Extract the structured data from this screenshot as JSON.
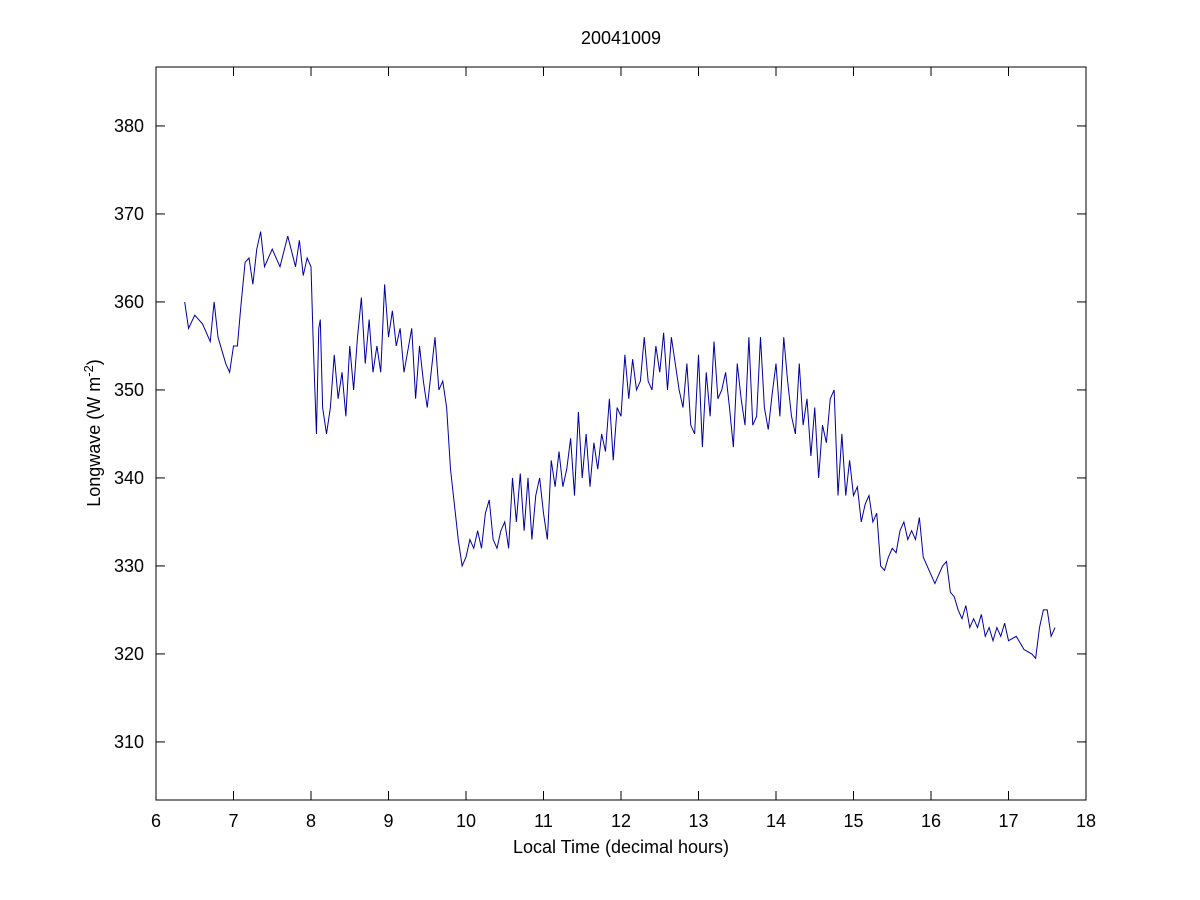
{
  "chart_data": {
    "type": "line",
    "title": "20041009",
    "xlabel": "Local Time (decimal hours)",
    "ylabel": [
      "Longwave (W m",
      "-2",
      ")"
    ],
    "color": "#0000a0",
    "xlim": [
      6,
      18
    ],
    "xticks": [
      6,
      7,
      8,
      9,
      10,
      11,
      12,
      13,
      14,
      15,
      16,
      17,
      18
    ],
    "ylim": [
      303.4,
      386.7
    ],
    "yticks": [
      310,
      320,
      330,
      340,
      350,
      360,
      370,
      380
    ],
    "x": [
      6.37,
      6.42,
      6.5,
      6.6,
      6.7,
      6.75,
      6.8,
      6.9,
      6.95,
      7.0,
      7.05,
      7.1,
      7.15,
      7.2,
      7.25,
      7.3,
      7.35,
      7.4,
      7.5,
      7.6,
      7.7,
      7.8,
      7.85,
      7.9,
      7.95,
      8.0,
      8.03,
      8.07,
      8.1,
      8.12,
      8.15,
      8.2,
      8.25,
      8.3,
      8.35,
      8.4,
      8.45,
      8.5,
      8.55,
      8.6,
      8.65,
      8.7,
      8.75,
      8.8,
      8.85,
      8.9,
      8.95,
      9.0,
      9.05,
      9.1,
      9.15,
      9.2,
      9.3,
      9.35,
      9.4,
      9.45,
      9.5,
      9.55,
      9.6,
      9.65,
      9.7,
      9.75,
      9.8,
      9.85,
      9.9,
      9.95,
      10.0,
      10.05,
      10.1,
      10.15,
      10.2,
      10.25,
      10.3,
      10.35,
      10.4,
      10.45,
      10.5,
      10.55,
      10.6,
      10.65,
      10.7,
      10.75,
      10.8,
      10.85,
      10.9,
      10.95,
      11.0,
      11.05,
      11.1,
      11.15,
      11.2,
      11.25,
      11.3,
      11.35,
      11.4,
      11.45,
      11.5,
      11.55,
      11.6,
      11.65,
      11.7,
      11.75,
      11.8,
      11.85,
      11.9,
      11.95,
      12.0,
      12.05,
      12.1,
      12.15,
      12.2,
      12.25,
      12.3,
      12.35,
      12.4,
      12.45,
      12.5,
      12.55,
      12.6,
      12.65,
      12.7,
      12.75,
      12.8,
      12.85,
      12.9,
      12.95,
      13.0,
      13.05,
      13.1,
      13.15,
      13.2,
      13.25,
      13.3,
      13.35,
      13.4,
      13.45,
      13.5,
      13.55,
      13.6,
      13.65,
      13.7,
      13.75,
      13.8,
      13.85,
      13.9,
      13.95,
      14.0,
      14.05,
      14.1,
      14.15,
      14.2,
      14.25,
      14.3,
      14.35,
      14.4,
      14.45,
      14.5,
      14.55,
      14.6,
      14.65,
      14.7,
      14.75,
      14.8,
      14.85,
      14.9,
      14.95,
      15.0,
      15.05,
      15.1,
      15.15,
      15.2,
      15.25,
      15.3,
      15.35,
      15.4,
      15.45,
      15.5,
      15.55,
      15.6,
      15.65,
      15.7,
      15.75,
      15.8,
      15.85,
      15.9,
      15.95,
      16.0,
      16.05,
      16.1,
      16.15,
      16.2,
      16.25,
      16.3,
      16.35,
      16.4,
      16.45,
      16.5,
      16.55,
      16.6,
      16.65,
      16.7,
      16.75,
      16.8,
      16.85,
      16.9,
      16.95,
      17.0,
      17.1,
      17.2,
      17.3,
      17.35,
      17.4,
      17.45,
      17.5,
      17.55,
      17.6
    ],
    "values": [
      360,
      357,
      358.5,
      357.5,
      355.5,
      360,
      356,
      353,
      352,
      355,
      355,
      360,
      364.5,
      365,
      362,
      366,
      368,
      364,
      366,
      364,
      367.5,
      364,
      367,
      363,
      365,
      364,
      355,
      345,
      357,
      358,
      348,
      345,
      348,
      354,
      349,
      352,
      347,
      355,
      350,
      356,
      360.5,
      353,
      358,
      352,
      355,
      352,
      362,
      356,
      359,
      355,
      357,
      352,
      357,
      349,
      355,
      351,
      348,
      352,
      356,
      350,
      351,
      348,
      341,
      337,
      333,
      330,
      331,
      333,
      332,
      334,
      332,
      336,
      337.5,
      333,
      332,
      334,
      335,
      332,
      340,
      335,
      340.5,
      334,
      340,
      333,
      338,
      340,
      336,
      333,
      342,
      339,
      343,
      339,
      341,
      344.5,
      338,
      347.5,
      340,
      345,
      339,
      344,
      341,
      345,
      343,
      349,
      342,
      348,
      347,
      354,
      349,
      353.5,
      350,
      351,
      356,
      351,
      350,
      355,
      352,
      356.5,
      350,
      356,
      353,
      350,
      348,
      353,
      346,
      345,
      354,
      343.5,
      352,
      347,
      355.5,
      349,
      350,
      352,
      348,
      343.5,
      353,
      349,
      346,
      356,
      346,
      347,
      356,
      348,
      345.5,
      349.5,
      353,
      347,
      356,
      351,
      347,
      345,
      353,
      346,
      349,
      342.5,
      348,
      340,
      346,
      344,
      349,
      350,
      338,
      345,
      338,
      342,
      338,
      339,
      335,
      337,
      338,
      335,
      336,
      330,
      329.5,
      331,
      332,
      331.5,
      334,
      335,
      333,
      334,
      333,
      335.5,
      331,
      330,
      329,
      328,
      329,
      330,
      330.5,
      327,
      326.5,
      325,
      324,
      325.5,
      323,
      324,
      323,
      324.5,
      322,
      323,
      321.5,
      323,
      322,
      323.5,
      321.5,
      322,
      320.5,
      320,
      319.5,
      323,
      325,
      325,
      322,
      323
    ]
  }
}
